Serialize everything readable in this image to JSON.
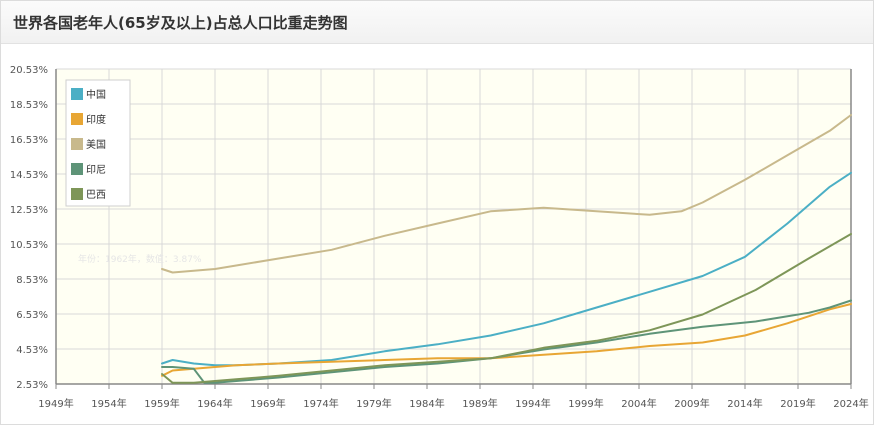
{
  "title": "世界各国老年人(65岁及以上)占总人口比重走势图",
  "faint_text": "年份：1962年，数值：3.87%",
  "chart_data": {
    "type": "line",
    "title": "世界各国老年人(65岁及以上)占总人口比重走势图",
    "xlabel": "",
    "ylabel": "",
    "xlim": [
      1949,
      2024
    ],
    "ylim": [
      2.53,
      20.53
    ],
    "x_ticks": [
      "1949年",
      "1954年",
      "1959年",
      "1964年",
      "1969年",
      "1974年",
      "1979年",
      "1984年",
      "1989年",
      "1994年",
      "1999年",
      "2004年",
      "2009年",
      "2014年",
      "2019年",
      "2024年"
    ],
    "y_ticks": [
      "2.53%",
      "4.53%",
      "6.53%",
      "8.53%",
      "10.53%",
      "12.53%",
      "14.53%",
      "16.53%",
      "18.53%",
      "20.53%"
    ],
    "legend_position": "top-left",
    "grid": true,
    "series": [
      {
        "name": "中国",
        "color": "#4bafc5",
        "x": [
          1959,
          1960,
          1962,
          1964,
          1966,
          1970,
          1975,
          1980,
          1985,
          1990,
          1995,
          2000,
          2005,
          2010,
          2014,
          2018,
          2022,
          2024
        ],
        "y": [
          3.7,
          3.9,
          3.7,
          3.6,
          3.6,
          3.7,
          3.9,
          4.4,
          4.8,
          5.3,
          6.0,
          6.9,
          7.8,
          8.7,
          9.8,
          11.7,
          13.8,
          14.6
        ]
      },
      {
        "name": "印度",
        "color": "#e8a634",
        "x": [
          1959,
          1960,
          1962,
          1964,
          1966,
          1970,
          1975,
          1980,
          1985,
          1990,
          1995,
          2000,
          2005,
          2010,
          2014,
          2018,
          2022,
          2024
        ],
        "y": [
          3.0,
          3.3,
          3.4,
          3.5,
          3.6,
          3.7,
          3.8,
          3.9,
          4.0,
          4.0,
          4.2,
          4.4,
          4.7,
          4.9,
          5.3,
          6.0,
          6.8,
          7.1
        ]
      },
      {
        "name": "美国",
        "color": "#c8b98c",
        "x": [
          1959,
          1960,
          1962,
          1964,
          1966,
          1970,
          1975,
          1980,
          1985,
          1990,
          1995,
          2000,
          2005,
          2008,
          2010,
          2014,
          2018,
          2022,
          2024
        ],
        "y": [
          9.1,
          8.9,
          9.0,
          9.1,
          9.3,
          9.7,
          10.2,
          11.0,
          11.7,
          12.4,
          12.6,
          12.4,
          12.2,
          12.4,
          12.9,
          14.2,
          15.6,
          17.0,
          17.9
        ]
      },
      {
        "name": "印尼",
        "color": "#5e9478",
        "x": [
          1959,
          1960,
          1962,
          1963,
          1964,
          1966,
          1970,
          1975,
          1980,
          1985,
          1990,
          1995,
          2000,
          2005,
          2010,
          2015,
          2020,
          2022,
          2024
        ],
        "y": [
          3.5,
          3.5,
          3.4,
          2.6,
          2.6,
          2.7,
          2.9,
          3.2,
          3.5,
          3.7,
          4.0,
          4.5,
          4.9,
          5.4,
          5.8,
          6.1,
          6.6,
          6.9,
          7.3
        ]
      },
      {
        "name": "巴西",
        "color": "#7e9658",
        "x": [
          1959,
          1960,
          1962,
          1964,
          1966,
          1970,
          1975,
          1980,
          1985,
          1990,
          1995,
          2000,
          2005,
          2010,
          2015,
          2020,
          2024
        ],
        "y": [
          3.1,
          2.6,
          2.6,
          2.7,
          2.8,
          3.0,
          3.3,
          3.6,
          3.8,
          4.0,
          4.6,
          5.0,
          5.6,
          6.5,
          7.9,
          9.7,
          11.1
        ]
      }
    ]
  }
}
